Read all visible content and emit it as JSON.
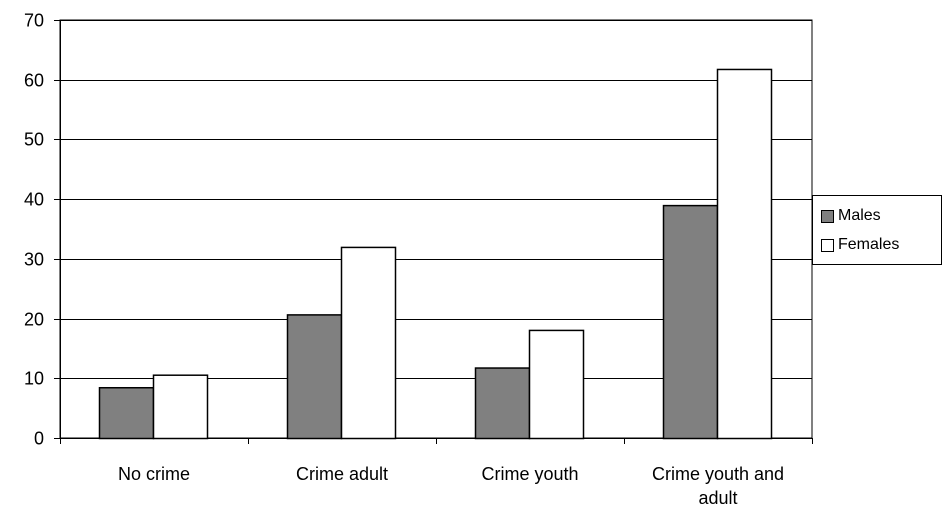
{
  "chart_data": {
    "type": "bar",
    "categories": [
      "No crime",
      "Crime adult",
      "Crime youth",
      "Crime youth and adult"
    ],
    "category_label_lines": [
      [
        "No crime"
      ],
      [
        "Crime adult"
      ],
      [
        "Crime youth"
      ],
      [
        "Crime youth and",
        "adult"
      ]
    ],
    "series": [
      {
        "name": "Males",
        "values": [
          8.5,
          20.7,
          11.8,
          39
        ],
        "color": "#808080"
      },
      {
        "name": "Females",
        "values": [
          10.6,
          32,
          18.1,
          61.8
        ],
        "color": "#ffffff"
      }
    ],
    "title": "",
    "xlabel": "",
    "ylabel": "",
    "ylim": [
      0,
      70
    ],
    "yticks": [
      "0",
      "10",
      "20",
      "30",
      "40",
      "50",
      "60",
      "70"
    ],
    "grid": true,
    "legend_position": "right"
  }
}
